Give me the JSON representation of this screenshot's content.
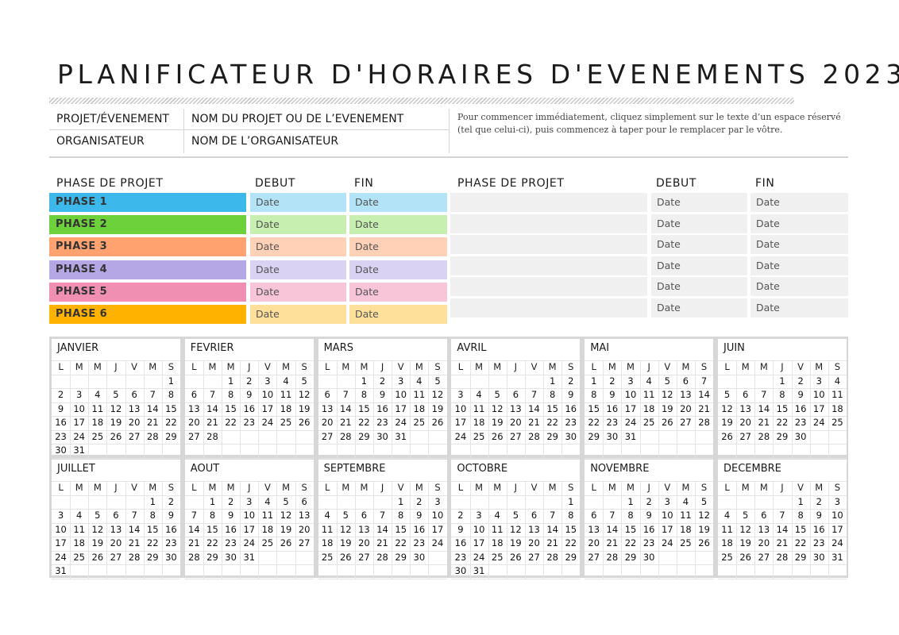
{
  "title": "PLANIFICATEUR D'HORAIRES D'EVENEMENTS 2023",
  "info": {
    "project_label": "PROJET/ÉVENEMENT",
    "project_value": "NOM DU PROJET OU DE L’EVENEMENT",
    "organizer_label": "ORGANISATEUR",
    "organizer_value": "NOM DE L’ORGANISATEUR",
    "help_text": "Pour commencer immédiatement, cliquez simplement sur le texte d’un espace réservé (tel que celui-ci), puis commencez à taper pour le remplacer par le vôtre."
  },
  "phases_left": {
    "header": {
      "phase": "PHASE DE PROJET",
      "start": "DEBUT",
      "end": "FIN"
    },
    "rows": [
      {
        "name": "PHASE 1",
        "start": "Date",
        "end": "Date",
        "color": "#3db8ea",
        "light": "#b2e3f6"
      },
      {
        "name": "PHASE 2",
        "start": "Date",
        "end": "Date",
        "color": "#6cd13a",
        "light": "#c6efb0"
      },
      {
        "name": "PHASE 3",
        "start": "Date",
        "end": "Date",
        "color": "#ffa270",
        "light": "#ffd1b6"
      },
      {
        "name": "PHASE 4",
        "start": "Date",
        "end": "Date",
        "color": "#b5a6e6",
        "light": "#dad2f3"
      },
      {
        "name": "PHASE 5",
        "start": "Date",
        "end": "Date",
        "color": "#f08fb2",
        "light": "#f8c5d8"
      },
      {
        "name": "PHASE 6",
        "start": "Date",
        "end": "Date",
        "color": "#ffb300",
        "light": "#ffe09a"
      }
    ]
  },
  "phases_right": {
    "header": {
      "phase": "PHASE DE PROJET",
      "start": "DEBUT",
      "end": "FIN"
    },
    "rows": [
      {
        "name": "",
        "start": "Date",
        "end": "Date"
      },
      {
        "name": "",
        "start": "Date",
        "end": "Date"
      },
      {
        "name": "",
        "start": "Date",
        "end": "Date"
      },
      {
        "name": "",
        "start": "Date",
        "end": "Date"
      },
      {
        "name": "",
        "start": "Date",
        "end": "Date"
      },
      {
        "name": "",
        "start": "Date",
        "end": "Date"
      }
    ]
  },
  "calendar": {
    "weekdays": [
      "L",
      "M",
      "M",
      "J",
      "V",
      "M",
      "S"
    ],
    "months": [
      {
        "name": "JANVIER",
        "offset": 6,
        "days": 31
      },
      {
        "name": "FEVRIER",
        "offset": 2,
        "days": 28
      },
      {
        "name": "MARS",
        "offset": 2,
        "days": 31
      },
      {
        "name": "AVRIL",
        "offset": 5,
        "days": 30
      },
      {
        "name": "MAI",
        "offset": 0,
        "days": 31
      },
      {
        "name": "JUIN",
        "offset": 3,
        "days": 30
      },
      {
        "name": "JUILLET",
        "offset": 5,
        "days": 31
      },
      {
        "name": "AOUT",
        "offset": 1,
        "days": 31
      },
      {
        "name": "SEPTEMBRE",
        "offset": 4,
        "days": 30
      },
      {
        "name": "OCTOBRE",
        "offset": 6,
        "days": 31
      },
      {
        "name": "NOVEMBRE",
        "offset": 2,
        "days": 30
      },
      {
        "name": "DECEMBRE",
        "offset": 4,
        "days": 31
      }
    ]
  }
}
